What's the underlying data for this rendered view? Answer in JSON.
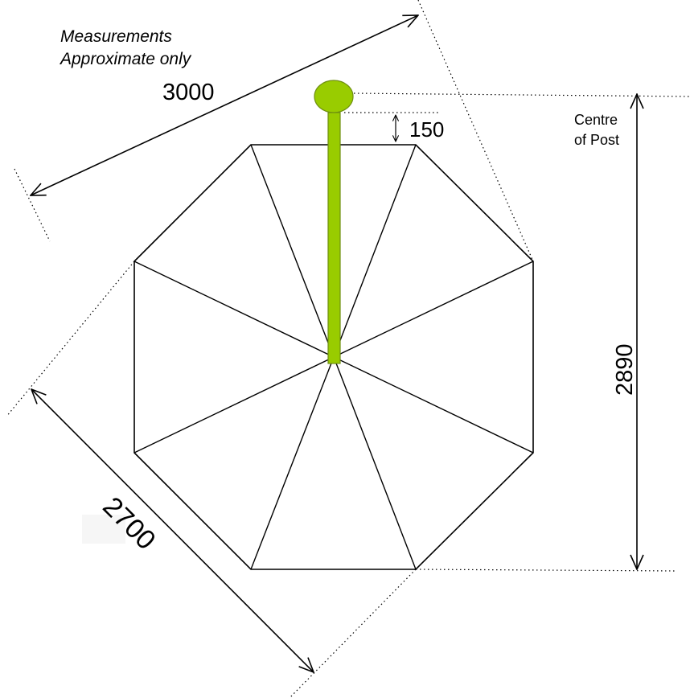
{
  "note": {
    "line1": "Measurements",
    "line2": "Approximate only"
  },
  "dimensions": {
    "top_width": "3000",
    "post_offset": "150",
    "height": "2890",
    "side": "2700"
  },
  "post_label": {
    "line1": "Centre",
    "line2": "of Post"
  },
  "colors": {
    "post_fill": "#99cc00",
    "post_stroke": "#6e8f10",
    "line": "#000000"
  }
}
